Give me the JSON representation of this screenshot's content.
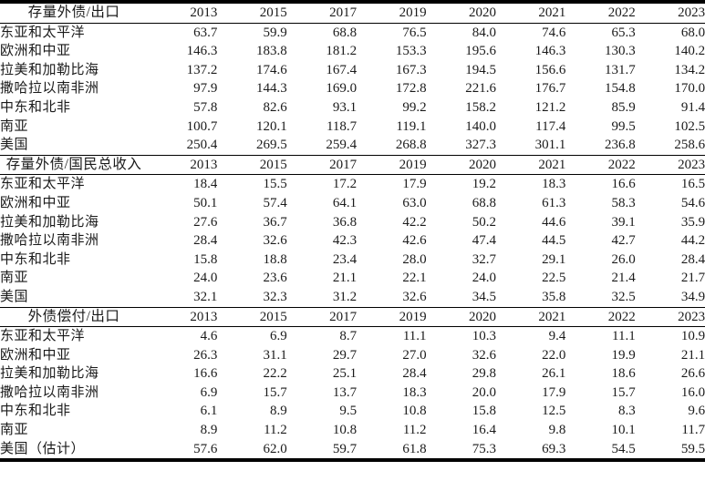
{
  "table": {
    "years": [
      "2013",
      "2015",
      "2017",
      "2019",
      "2020",
      "2021",
      "2022",
      "2023"
    ],
    "sections": [
      {
        "title": "存量外债/出口",
        "rows": [
          {
            "label": "东亚和太平洋",
            "values": [
              "63.7",
              "59.9",
              "68.8",
              "76.5",
              "84.0",
              "74.6",
              "65.3",
              "68.0"
            ]
          },
          {
            "label": "欧洲和中亚",
            "values": [
              "146.3",
              "183.8",
              "181.2",
              "153.3",
              "195.6",
              "146.3",
              "130.3",
              "140.2"
            ]
          },
          {
            "label": "拉美和加勒比海",
            "values": [
              "137.2",
              "174.6",
              "167.4",
              "167.3",
              "194.5",
              "156.6",
              "131.7",
              "134.2"
            ]
          },
          {
            "label": "撒哈拉以南非洲",
            "values": [
              "97.9",
              "144.3",
              "169.0",
              "172.8",
              "221.6",
              "176.7",
              "154.8",
              "170.0"
            ]
          },
          {
            "label": "中东和北非",
            "values": [
              "57.8",
              "82.6",
              "93.1",
              "99.2",
              "158.2",
              "121.2",
              "85.9",
              "91.4"
            ]
          },
          {
            "label": "南亚",
            "values": [
              "100.7",
              "120.1",
              "118.7",
              "119.1",
              "140.0",
              "117.4",
              "99.5",
              "102.5"
            ]
          },
          {
            "label": "美国",
            "values": [
              "250.4",
              "269.5",
              "259.4",
              "268.8",
              "327.3",
              "301.1",
              "236.8",
              "258.6"
            ]
          }
        ]
      },
      {
        "title": "存量外债/国民总收入",
        "rows": [
          {
            "label": "东亚和太平洋",
            "values": [
              "18.4",
              "15.5",
              "17.2",
              "17.9",
              "19.2",
              "18.3",
              "16.6",
              "16.5"
            ]
          },
          {
            "label": "欧洲和中亚",
            "values": [
              "50.1",
              "57.4",
              "64.1",
              "63.0",
              "68.8",
              "61.3",
              "58.3",
              "54.6"
            ]
          },
          {
            "label": "拉美和加勒比海",
            "values": [
              "27.6",
              "36.7",
              "36.8",
              "42.2",
              "50.2",
              "44.6",
              "39.1",
              "35.9"
            ]
          },
          {
            "label": "撒哈拉以南非洲",
            "values": [
              "28.4",
              "32.6",
              "42.3",
              "42.6",
              "47.4",
              "44.5",
              "42.7",
              "44.2"
            ]
          },
          {
            "label": "中东和北非",
            "values": [
              "15.8",
              "18.8",
              "23.4",
              "28.0",
              "32.7",
              "29.1",
              "26.0",
              "28.4"
            ]
          },
          {
            "label": "南亚",
            "values": [
              "24.0",
              "23.6",
              "21.1",
              "22.1",
              "24.0",
              "22.5",
              "21.4",
              "21.7"
            ]
          },
          {
            "label": "美国",
            "values": [
              "32.1",
              "32.3",
              "31.2",
              "32.6",
              "34.5",
              "35.8",
              "32.5",
              "34.9"
            ]
          }
        ]
      },
      {
        "title": "外债偿付/出口",
        "rows": [
          {
            "label": "东亚和太平洋",
            "values": [
              "4.6",
              "6.9",
              "8.7",
              "11.1",
              "10.3",
              "9.4",
              "11.1",
              "10.9"
            ]
          },
          {
            "label": "欧洲和中亚",
            "values": [
              "26.3",
              "31.1",
              "29.7",
              "27.0",
              "32.6",
              "22.0",
              "19.9",
              "21.1"
            ]
          },
          {
            "label": "拉美和加勒比海",
            "values": [
              "16.6",
              "22.2",
              "25.1",
              "28.4",
              "29.8",
              "26.1",
              "18.6",
              "26.6"
            ]
          },
          {
            "label": "撒哈拉以南非洲",
            "values": [
              "6.9",
              "15.7",
              "13.7",
              "18.3",
              "20.0",
              "17.9",
              "15.7",
              "16.0"
            ]
          },
          {
            "label": "中东和北非",
            "values": [
              "6.1",
              "8.9",
              "9.5",
              "10.8",
              "15.8",
              "12.5",
              "8.3",
              "9.6"
            ]
          },
          {
            "label": "南亚",
            "values": [
              "8.9",
              "11.2",
              "10.8",
              "11.2",
              "16.4",
              "9.8",
              "10.1",
              "11.7"
            ]
          },
          {
            "label": "美国（估计）",
            "values": [
              "57.6",
              "62.0",
              "59.7",
              "61.8",
              "75.3",
              "69.3",
              "54.5",
              "59.5"
            ]
          }
        ]
      }
    ],
    "colors": {
      "text": "#1a1a1a",
      "border": "#000000",
      "background": "#ffffff"
    }
  }
}
